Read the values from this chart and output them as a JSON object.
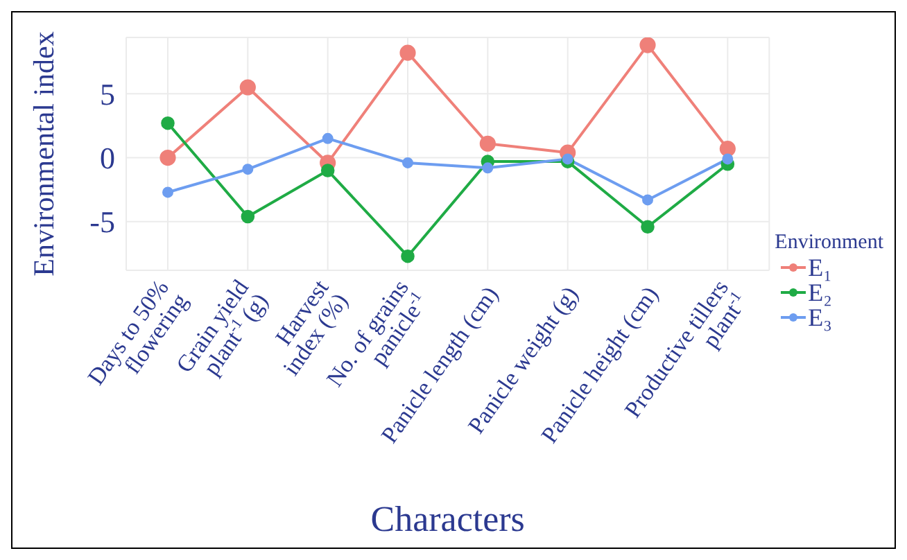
{
  "chart_data": {
    "type": "line",
    "xlabel": "Characters",
    "ylabel": "Environmental index",
    "legend_title": "Environment",
    "categories": [
      "Days to 50%\nflowering",
      "Grain yield\nplant$^{-1}$ (g)",
      "Harvest\nindex (%)",
      "No. of grains\npanicle$^{-1}$",
      "Panicle length (cm)",
      "Panicle weight (g)",
      "Panicle height (cm)",
      "Productive tillers\nplant$^{-1}$"
    ],
    "series": [
      {
        "name": "E₁",
        "color": "#ef8079",
        "values": [
          0,
          5.5,
          -0.4,
          8.2,
          1.1,
          0.4,
          8.8,
          0.7
        ]
      },
      {
        "name": "E₂",
        "color": "#1fab45",
        "values": [
          2.7,
          -4.6,
          -1.0,
          -7.7,
          -0.3,
          -0.3,
          -5.4,
          -0.5
        ]
      },
      {
        "name": "E₃",
        "color": "#6d9df0",
        "values": [
          -2.7,
          -0.9,
          1.5,
          -0.4,
          -0.8,
          -0.1,
          -3.3,
          -0.1
        ]
      }
    ],
    "ylim": [
      -8.8,
      9.4
    ],
    "yticks": [
      -5,
      0,
      5
    ],
    "grid": true,
    "legend": "right",
    "marker": "circle"
  }
}
